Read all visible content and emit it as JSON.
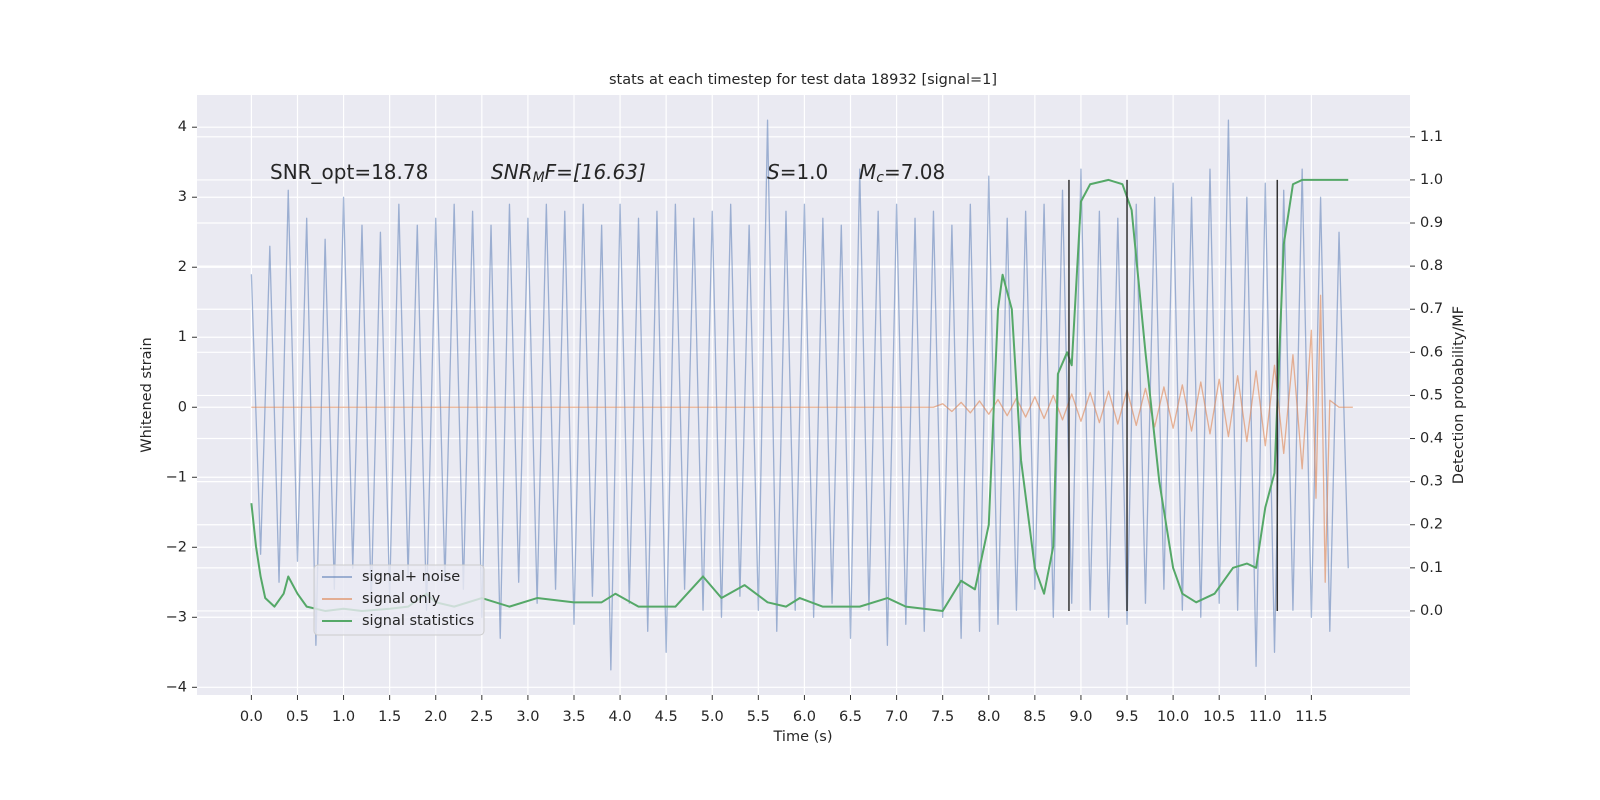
{
  "chart_data": {
    "type": "line",
    "title": "stats at each timestep for test data 18932 [signal=1]",
    "xlabel": "Time (s)",
    "ylabel": "Whitened strain",
    "y2label": "Detection probability/MF",
    "annotations": [
      [
        "SNR_opt=18.78"
      ],
      [
        "SNR",
        "M",
        "F=[16.63]"
      ],
      [
        "S",
        "=1.0"
      ],
      [
        "M",
        "c",
        "=7.08"
      ]
    ],
    "xlim": [
      -0.59,
      12.57
    ],
    "ylim": [
      -4.11,
      4.46
    ],
    "y2lim": [
      -0.195,
      1.197
    ],
    "xticks": [
      {
        "value": 0,
        "label": "0.0"
      },
      0.5,
      {
        "value": 1,
        "label": "1.0"
      },
      1.5,
      {
        "value": 2,
        "label": "2.0"
      },
      2.5,
      {
        "value": 3,
        "label": "3.0"
      },
      3.5,
      {
        "value": 4,
        "label": "4.0"
      },
      4.5,
      {
        "value": 5,
        "label": "5.0"
      },
      5.5,
      {
        "value": 6,
        "label": "6.0"
      },
      6.5,
      {
        "value": 7,
        "label": "7.0"
      },
      7.5,
      {
        "value": 8,
        "label": "8.0"
      },
      8.5,
      {
        "value": 9,
        "label": "9.0"
      },
      9.5,
      {
        "value": 10,
        "label": "10.0"
      },
      10.5,
      {
        "value": 11,
        "label": "11.0"
      },
      11.5
    ],
    "yticks": [
      {
        "value": -4,
        "label": "−4"
      },
      {
        "value": -3,
        "label": "−3"
      },
      {
        "value": -2,
        "label": "−2"
      },
      {
        "value": -1,
        "label": "−1"
      },
      0,
      1,
      2,
      3,
      4
    ],
    "y2ticks": [
      {
        "value": 0,
        "label": "0.0"
      },
      0.1,
      0.2,
      0.3,
      0.4,
      0.5,
      0.6,
      0.7,
      0.8,
      0.9,
      {
        "value": 1,
        "label": "1.0"
      },
      1.1
    ],
    "grid": true,
    "legend": "lower left",
    "series": [
      {
        "name": "signal+ noise",
        "color": "#4c72b0",
        "opacity": 0.5,
        "x": [
          0.0,
          0.1,
          0.2,
          0.3,
          0.4,
          0.5,
          0.6,
          0.7,
          0.8,
          0.9,
          1.0,
          1.1,
          1.2,
          1.3,
          1.4,
          1.5,
          1.6,
          1.7,
          1.8,
          1.9,
          2.0,
          2.1,
          2.2,
          2.3,
          2.4,
          2.5,
          2.6,
          2.7,
          2.8,
          2.9,
          3.0,
          3.1,
          3.2,
          3.3,
          3.4,
          3.5,
          3.6,
          3.7,
          3.8,
          3.9,
          4.0,
          4.1,
          4.2,
          4.3,
          4.4,
          4.5,
          4.6,
          4.7,
          4.8,
          4.9,
          5.0,
          5.1,
          5.2,
          5.3,
          5.4,
          5.5,
          5.6,
          5.7,
          5.8,
          5.9,
          6.0,
          6.1,
          6.2,
          6.3,
          6.4,
          6.5,
          6.6,
          6.7,
          6.8,
          6.9,
          7.0,
          7.1,
          7.2,
          7.3,
          7.4,
          7.5,
          7.6,
          7.7,
          7.8,
          7.9,
          8.0,
          8.1,
          8.2,
          8.3,
          8.4,
          8.5,
          8.6,
          8.7,
          8.8,
          8.9,
          9.0,
          9.1,
          9.2,
          9.3,
          9.4,
          9.5,
          9.6,
          9.7,
          9.8,
          9.9,
          10.0,
          10.1,
          10.2,
          10.3,
          10.4,
          10.5,
          10.6,
          10.7,
          10.8,
          10.9,
          11.0,
          11.1,
          11.2,
          11.3,
          11.4,
          11.5,
          11.6,
          11.7,
          11.8,
          11.9
        ],
        "values": [
          1.9,
          -2.1,
          2.3,
          -2.5,
          3.1,
          -2.2,
          2.7,
          -3.4,
          2.4,
          -2.6,
          3.0,
          -2.3,
          2.6,
          -2.8,
          2.5,
          -2.7,
          2.9,
          -2.4,
          2.6,
          -2.9,
          2.7,
          -2.5,
          2.9,
          -2.6,
          2.8,
          -3.0,
          2.6,
          -3.3,
          2.9,
          -2.5,
          2.7,
          -2.8,
          2.9,
          -2.6,
          2.8,
          -3.1,
          2.9,
          -2.7,
          2.6,
          -3.75,
          2.9,
          -2.8,
          2.7,
          -3.2,
          2.8,
          -3.5,
          2.9,
          -2.6,
          2.7,
          -2.9,
          2.8,
          -3.0,
          2.9,
          -2.7,
          2.6,
          -2.9,
          4.1,
          -3.2,
          2.8,
          -2.9,
          2.9,
          -3.0,
          2.7,
          -2.8,
          2.6,
          -3.3,
          3.4,
          -2.9,
          2.8,
          -3.4,
          2.9,
          -3.1,
          2.7,
          -3.2,
          2.8,
          -3.0,
          2.6,
          -3.3,
          2.9,
          -3.2,
          3.3,
          -3.1,
          2.7,
          -2.9,
          2.8,
          -2.6,
          2.9,
          -3.0,
          3.1,
          -2.8,
          3.4,
          -2.9,
          2.8,
          -3.0,
          2.7,
          -3.1,
          2.9,
          -2.8,
          3.0,
          -2.6,
          3.2,
          -2.9,
          3.0,
          -3.0,
          3.4,
          -2.8,
          4.1,
          -2.9,
          3.0,
          -3.7,
          3.2,
          -3.5,
          3.1,
          -2.9,
          3.4,
          -3.0,
          3.0,
          -3.2,
          2.5,
          -2.3
        ]
      },
      {
        "name": "signal only",
        "color": "#dd8452",
        "opacity": 0.6,
        "x": [
          0.0,
          7.4,
          7.5,
          7.6,
          7.7,
          7.8,
          7.9,
          8.0,
          8.1,
          8.2,
          8.3,
          8.4,
          8.5,
          8.6,
          8.7,
          8.8,
          8.9,
          9.0,
          9.1,
          9.2,
          9.3,
          9.4,
          9.5,
          9.6,
          9.7,
          9.8,
          9.9,
          10.0,
          10.1,
          10.2,
          10.3,
          10.4,
          10.5,
          10.6,
          10.7,
          10.8,
          10.9,
          11.0,
          11.1,
          11.2,
          11.3,
          11.4,
          11.5,
          11.55,
          11.6,
          11.65,
          11.7,
          11.8,
          11.95
        ],
        "values": [
          0,
          0,
          0.05,
          -0.06,
          0.07,
          -0.08,
          0.09,
          -0.1,
          0.11,
          -0.12,
          0.13,
          -0.14,
          0.15,
          -0.16,
          0.17,
          -0.18,
          0.19,
          -0.2,
          0.21,
          -0.22,
          0.23,
          -0.24,
          0.25,
          -0.26,
          0.27,
          -0.28,
          0.29,
          -0.3,
          0.32,
          -0.34,
          0.36,
          -0.38,
          0.4,
          -0.42,
          0.45,
          -0.49,
          0.52,
          -0.55,
          0.6,
          -0.66,
          0.75,
          -0.88,
          1.1,
          -1.3,
          1.6,
          -2.5,
          0.1,
          0,
          0
        ]
      },
      {
        "name": "signal statistics",
        "color": "#55a868",
        "axis": "y2",
        "x": [
          0.0,
          0.05,
          0.1,
          0.15,
          0.25,
          0.35,
          0.4,
          0.5,
          0.6,
          0.8,
          1.0,
          1.2,
          1.5,
          1.7,
          1.9,
          2.0,
          2.2,
          2.5,
          2.8,
          3.1,
          3.5,
          3.8,
          3.95,
          4.2,
          4.6,
          4.9,
          5.1,
          5.35,
          5.6,
          5.8,
          5.95,
          6.2,
          6.6,
          6.9,
          7.1,
          7.5,
          7.7,
          7.85,
          8.0,
          8.1,
          8.15,
          8.25,
          8.35,
          8.5,
          8.6,
          8.7,
          8.75,
          8.85,
          8.9,
          9.0,
          9.1,
          9.3,
          9.45,
          9.55,
          9.7,
          9.85,
          10.0,
          10.1,
          10.25,
          10.45,
          10.65,
          10.8,
          10.9,
          11.0,
          11.1,
          11.2,
          11.3,
          11.4,
          11.6,
          11.9
        ],
        "values": [
          0.25,
          0.15,
          0.08,
          0.03,
          0.01,
          0.04,
          0.08,
          0.04,
          0.01,
          0.0,
          0.005,
          0.0,
          0.005,
          0.01,
          0.04,
          0.02,
          0.01,
          0.03,
          0.01,
          0.03,
          0.02,
          0.02,
          0.04,
          0.01,
          0.01,
          0.08,
          0.03,
          0.06,
          0.02,
          0.01,
          0.03,
          0.01,
          0.01,
          0.03,
          0.01,
          0.0,
          0.07,
          0.05,
          0.2,
          0.7,
          0.78,
          0.7,
          0.35,
          0.1,
          0.04,
          0.15,
          0.55,
          0.6,
          0.57,
          0.95,
          0.99,
          1.0,
          0.99,
          0.93,
          0.6,
          0.3,
          0.1,
          0.04,
          0.02,
          0.04,
          0.1,
          0.11,
          0.1,
          0.24,
          0.32,
          0.85,
          0.99,
          1.0,
          1.0,
          1.0
        ]
      }
    ],
    "vlines": {
      "x": [
        8.87,
        9.5,
        11.13
      ],
      "ymin": 0,
      "ymax": 1.0,
      "axis": "y2",
      "color": "#333333"
    }
  }
}
